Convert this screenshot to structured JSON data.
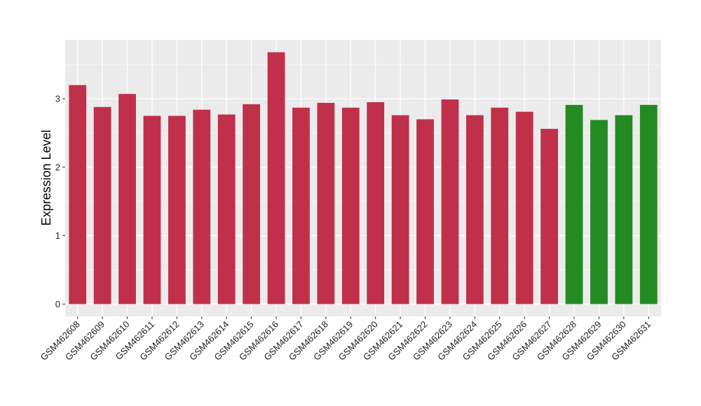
{
  "chart_data": {
    "type": "bar",
    "y_label": "Expression Level",
    "categories": [
      "GSM462608",
      "GSM462609",
      "GSM462610",
      "GSM462611",
      "GSM462612",
      "GSM462613",
      "GSM462614",
      "GSM462615",
      "GSM462616",
      "GSM462617",
      "GSM462618",
      "GSM462619",
      "GSM462620",
      "GSM462621",
      "GSM462622",
      "GSM462623",
      "GSM462624",
      "GSM462625",
      "GSM462626",
      "GSM462627",
      "GSM462628",
      "GSM462629",
      "GSM462630",
      "GSM462631"
    ],
    "values": [
      3.2,
      2.88,
      3.07,
      2.75,
      2.75,
      2.84,
      2.77,
      2.92,
      3.68,
      2.87,
      2.94,
      2.87,
      2.95,
      2.76,
      2.7,
      2.99,
      2.76,
      2.87,
      2.81,
      2.56,
      2.91,
      2.69,
      2.76,
      2.91
    ],
    "colors": [
      "#c0304a",
      "#c0304a",
      "#c0304a",
      "#c0304a",
      "#c0304a",
      "#c0304a",
      "#c0304a",
      "#c0304a",
      "#c0304a",
      "#c0304a",
      "#c0304a",
      "#c0304a",
      "#c0304a",
      "#c0304a",
      "#c0304a",
      "#c0304a",
      "#c0304a",
      "#c0304a",
      "#c0304a",
      "#c0304a",
      "#228b22",
      "#228b22",
      "#228b22",
      "#228b22"
    ],
    "ylim": [
      -0.18,
      3.86
    ],
    "yticks": [
      0,
      1,
      2,
      3
    ],
    "grid": true
  }
}
